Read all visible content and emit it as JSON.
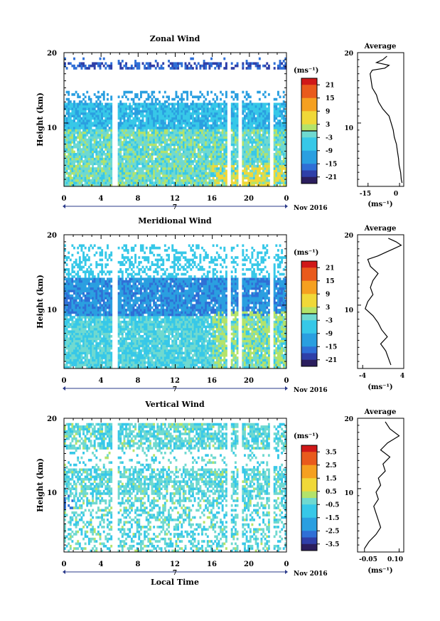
{
  "month_label": "Nov 2016",
  "day_label": "7",
  "colorbar_unit": "(ms⁻¹)",
  "avg_unit": "(ms⁻¹)",
  "bottom_xlabel": "Local Time",
  "colors": {
    "scale": [
      "#2b1e5e",
      "#2f3fa8",
      "#2f6fd6",
      "#2a9fe0",
      "#37c8e8",
      "#6fd9d0",
      "#b3e36a",
      "#f0d838",
      "#f5a020",
      "#e95a1c",
      "#d01818"
    ]
  },
  "chart_data": [
    {
      "type": "heatmap",
      "title": "Zonal Wind",
      "ylabel": "Height (km)",
      "ylim": [
        1,
        20
      ],
      "xlim": [
        0,
        24
      ],
      "y_ticks": [
        "20",
        "10"
      ],
      "x_ticks": [
        "0",
        "4",
        "8",
        "12",
        "16",
        "20",
        "0"
      ],
      "colorbar": {
        "ticks": [
          "21",
          "15",
          "9",
          "3",
          "-3",
          "-9",
          "-15",
          "-21"
        ],
        "range": [
          -24,
          24
        ],
        "zero_line": 0
      },
      "avg_title": "Average",
      "avg_xticks": [
        "-15",
        "0"
      ],
      "avg_xlim": [
        -20,
        2
      ],
      "avg_y_ticks": [
        "20",
        "10"
      ],
      "avg_profile": [
        [
          1.5,
          1.2
        ],
        [
          2,
          0.8
        ],
        [
          3,
          0.5
        ],
        [
          4,
          -0.2
        ],
        [
          5,
          -0.5
        ],
        [
          6,
          -1
        ],
        [
          7,
          -1.5
        ],
        [
          8,
          -2.5
        ],
        [
          9,
          -3
        ],
        [
          10,
          -4
        ],
        [
          11,
          -5
        ],
        [
          12,
          -8
        ],
        [
          13,
          -10
        ],
        [
          14,
          -11
        ],
        [
          15,
          -13
        ],
        [
          16,
          -13.5
        ],
        [
          17,
          -14
        ],
        [
          17.5,
          -13
        ],
        [
          17.8,
          -7
        ],
        [
          18.2,
          -5
        ],
        [
          18.6,
          -11
        ],
        [
          19,
          -8
        ],
        [
          19.5,
          -6
        ]
      ]
    },
    {
      "type": "heatmap",
      "title": "Meridional Wind",
      "ylabel": "Height (km)",
      "ylim": [
        1,
        20
      ],
      "xlim": [
        0,
        24
      ],
      "y_ticks": [
        "20",
        "10"
      ],
      "x_ticks": [
        "0",
        "4",
        "8",
        "12",
        "16",
        "20",
        "0"
      ],
      "colorbar": {
        "ticks": [
          "21",
          "15",
          "9",
          "3",
          "-3",
          "-9",
          "-15",
          "-21"
        ],
        "range": [
          -24,
          24
        ],
        "zero_line": 0
      },
      "avg_title": "Average",
      "avg_xticks": [
        "-4",
        "4"
      ],
      "avg_xlim": [
        -5,
        4
      ],
      "avg_y_ticks": [
        "20",
        "10"
      ],
      "avg_profile": [
        [
          1.5,
          1.5
        ],
        [
          2.5,
          1
        ],
        [
          3.5,
          0.5
        ],
        [
          4.5,
          -0.5
        ],
        [
          5.5,
          0.8
        ],
        [
          6.5,
          -0.3
        ],
        [
          7.5,
          -1
        ],
        [
          8.5,
          -2
        ],
        [
          9.5,
          -3.5
        ],
        [
          10.5,
          -3
        ],
        [
          11.5,
          -2
        ],
        [
          12.5,
          -2.5
        ],
        [
          13.5,
          -2
        ],
        [
          14.5,
          -1
        ],
        [
          15.5,
          -2.5
        ],
        [
          16.5,
          -3
        ],
        [
          17,
          -1
        ],
        [
          17.5,
          0.5
        ],
        [
          18,
          2
        ],
        [
          18.5,
          3.5
        ],
        [
          19,
          2.5
        ],
        [
          19.5,
          1
        ]
      ]
    },
    {
      "type": "heatmap",
      "title": "Vertical Wind",
      "ylabel": "Height (km)",
      "ylim": [
        1,
        20
      ],
      "xlim": [
        0,
        24
      ],
      "y_ticks": [
        "20",
        "10"
      ],
      "x_ticks": [
        "0",
        "4",
        "8",
        "12",
        "16",
        "20",
        "0"
      ],
      "xlabel": "Local Time",
      "colorbar": {
        "ticks": [
          "3.5",
          "2.5",
          "1.5",
          "0.5",
          "-0.5",
          "-1.5",
          "-2.5",
          "-3.5"
        ],
        "range": [
          -4,
          4
        ],
        "zero_line": null
      },
      "avg_title": "Average",
      "avg_xticks": [
        "-0.05",
        "0.10"
      ],
      "avg_xlim": [
        -0.08,
        0.12
      ],
      "avg_y_ticks": [
        "20",
        "10"
      ],
      "avg_profile": [
        [
          1.5,
          -0.05
        ],
        [
          2.5,
          -0.03
        ],
        [
          3.5,
          0.0
        ],
        [
          4.5,
          0.02
        ],
        [
          5.5,
          0.01
        ],
        [
          6.5,
          0.0
        ],
        [
          7.5,
          -0.01
        ],
        [
          8.5,
          0.01
        ],
        [
          9.5,
          0.0
        ],
        [
          10.5,
          0.02
        ],
        [
          11.5,
          0.01
        ],
        [
          12.5,
          0.04
        ],
        [
          13.5,
          0.03
        ],
        [
          14.5,
          0.06
        ],
        [
          15.5,
          0.02
        ],
        [
          16.5,
          0.05
        ],
        [
          17.5,
          0.1
        ],
        [
          18.5,
          0.06
        ],
        [
          19.5,
          0.04
        ]
      ]
    }
  ]
}
